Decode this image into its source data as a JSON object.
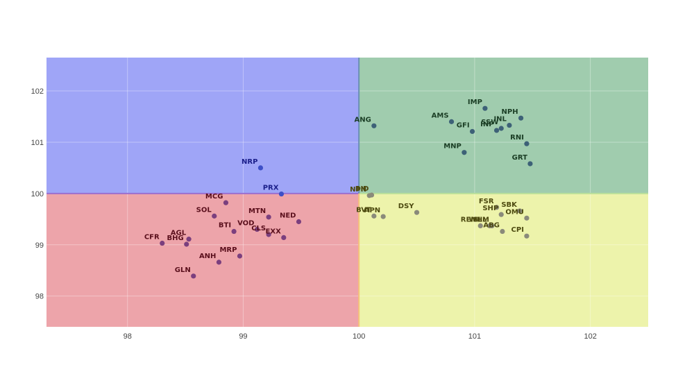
{
  "chart_data": {
    "type": "scatter",
    "title": "",
    "xlabel": "",
    "ylabel": "",
    "xlim": [
      97.3,
      102.5
    ],
    "ylim": [
      97.4,
      102.65
    ],
    "x_ticks": [
      98,
      99,
      100,
      101,
      102
    ],
    "y_ticks": [
      98,
      99,
      100,
      101,
      102
    ],
    "grid": true,
    "legend": null,
    "quadrants": [
      {
        "name": "top-left",
        "x": [
          97.3,
          100
        ],
        "y": [
          100,
          102.65
        ],
        "color": "#9fa5f7"
      },
      {
        "name": "top-right",
        "x": [
          100,
          102.5
        ],
        "y": [
          100,
          102.65
        ],
        "color": "#a0ccae"
      },
      {
        "name": "bottom-left",
        "x": [
          97.3,
          100
        ],
        "y": [
          97.4,
          100
        ],
        "color": "#eda4aa"
      },
      {
        "name": "bottom-right",
        "x": [
          100,
          102.5
        ],
        "y": [
          97.4,
          100
        ],
        "color": "#edf3ab"
      }
    ],
    "series": [
      {
        "name": "top-left",
        "marker_color": "#3d4fc7",
        "text_color": "#1b1f8a",
        "points": [
          {
            "label": "NRP",
            "x": 99.15,
            "y": 100.5
          },
          {
            "label": "PRX",
            "x": 99.33,
            "y": 99.99
          }
        ]
      },
      {
        "name": "top-right",
        "marker_color": "#3d6177",
        "text_color": "#1a3d24",
        "points": [
          {
            "label": "ANG",
            "x": 100.13,
            "y": 101.32
          },
          {
            "label": "AMS",
            "x": 100.8,
            "y": 101.4
          },
          {
            "label": "IMP",
            "x": 101.09,
            "y": 101.66
          },
          {
            "label": "GFI",
            "x": 100.98,
            "y": 101.21
          },
          {
            "label": "INP",
            "x": 101.19,
            "y": 101.23
          },
          {
            "label": "SSW",
            "x": 101.23,
            "y": 101.27
          },
          {
            "label": "INL",
            "x": 101.3,
            "y": 101.33
          },
          {
            "label": "NPH",
            "x": 101.4,
            "y": 101.47
          },
          {
            "label": "RNI",
            "x": 101.45,
            "y": 100.97
          },
          {
            "label": "GRT",
            "x": 101.48,
            "y": 100.58
          },
          {
            "label": "MNP",
            "x": 100.91,
            "y": 100.8
          }
        ]
      },
      {
        "name": "bottom-left",
        "marker_color": "#7b3f7e",
        "text_color": "#5a0f1c",
        "points": [
          {
            "label": "CFR",
            "x": 98.3,
            "y": 99.03
          },
          {
            "label": "BHG",
            "x": 98.51,
            "y": 99.01
          },
          {
            "label": "AGL",
            "x": 98.53,
            "y": 99.11
          },
          {
            "label": "SOL",
            "x": 98.75,
            "y": 99.56
          },
          {
            "label": "MCG",
            "x": 98.85,
            "y": 99.82
          },
          {
            "label": "BTI",
            "x": 98.92,
            "y": 99.26
          },
          {
            "label": "ANH",
            "x": 98.79,
            "y": 98.66
          },
          {
            "label": "GLN",
            "x": 98.57,
            "y": 98.39
          },
          {
            "label": "MRP",
            "x": 98.97,
            "y": 98.78
          },
          {
            "label": "VOD",
            "x": 99.12,
            "y": 99.3
          },
          {
            "label": "MTN",
            "x": 99.22,
            "y": 99.54
          },
          {
            "label": "CLS",
            "x": 99.22,
            "y": 99.2
          },
          {
            "label": "EXX",
            "x": 99.35,
            "y": 99.14
          },
          {
            "label": "NED",
            "x": 99.48,
            "y": 99.45
          }
        ]
      },
      {
        "name": "bottom-right",
        "marker_color": "#8a8a7a",
        "text_color": "#4d4a10",
        "points": [
          {
            "label": "NPN",
            "x": 100.09,
            "y": 99.96
          },
          {
            "label": "BID",
            "x": 100.11,
            "y": 99.97
          },
          {
            "label": "BVT",
            "x": 100.13,
            "y": 99.56
          },
          {
            "label": "APN",
            "x": 100.21,
            "y": 99.55
          },
          {
            "label": "DSY",
            "x": 100.5,
            "y": 99.63
          },
          {
            "label": "FSR",
            "x": 101.19,
            "y": 99.73
          },
          {
            "label": "SHP",
            "x": 101.23,
            "y": 99.59
          },
          {
            "label": "SBK",
            "x": 101.39,
            "y": 99.66
          },
          {
            "label": "OMU",
            "x": 101.45,
            "y": 99.52
          },
          {
            "label": "REM",
            "x": 101.05,
            "y": 99.37
          },
          {
            "label": "WHL",
            "x": 101.13,
            "y": 99.37
          },
          {
            "label": "SLM",
            "x": 101.15,
            "y": 99.37
          },
          {
            "label": "ABG",
            "x": 101.24,
            "y": 99.26
          },
          {
            "label": "CPI",
            "x": 101.45,
            "y": 99.17
          }
        ]
      }
    ]
  }
}
